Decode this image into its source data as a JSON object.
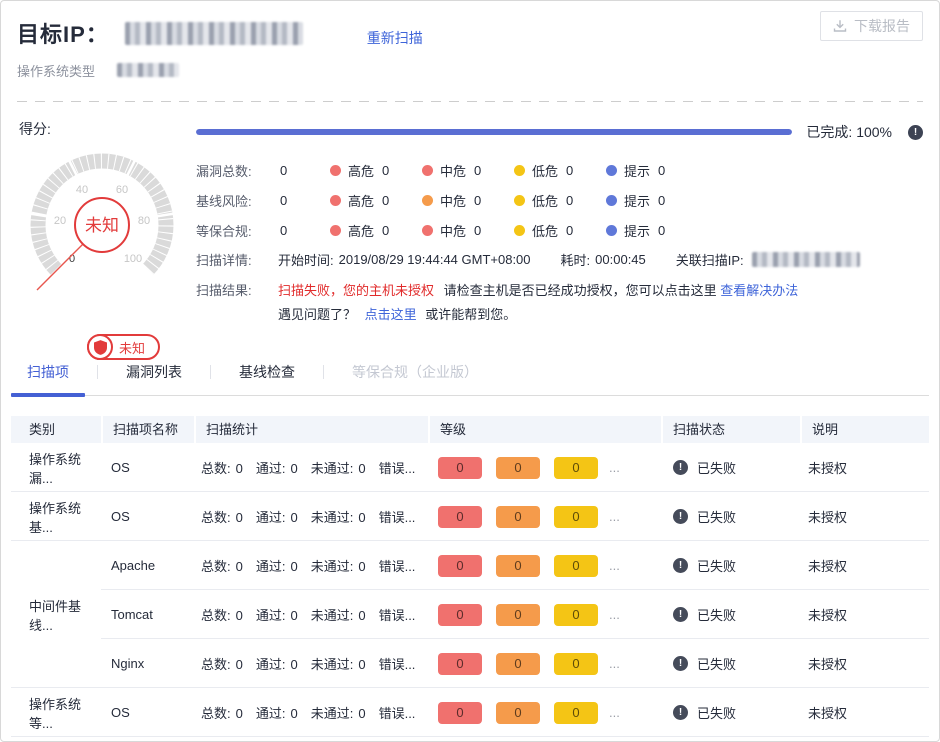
{
  "colors": {
    "accent_blue": "#4460d4",
    "link_blue": "#3e64d9",
    "progress_blue": "#5a6ed3",
    "danger_red": "#e12b2b",
    "gauge_red": "#e23b3b",
    "dot_red": "#f0716e",
    "dot_orange": "#f59b4b",
    "dot_yellow": "#f4c515",
    "dot_blue": "#5f78d9",
    "status_icon_gray": "#454b5a",
    "thead_bg": "#f2f5fa"
  },
  "header": {
    "title_label": "目标IP：",
    "rescan_label": "重新扫描",
    "download_label": "下载报告",
    "os_type_label": "操作系统类型"
  },
  "summary": {
    "score_label": "得分:",
    "gauge": {
      "center_text": "未知",
      "badge_text": "未知",
      "ticks": [
        "0",
        "20",
        "40",
        "60",
        "80",
        "100"
      ]
    },
    "progress": {
      "completed_label": "已完成:",
      "percent_text": "100%",
      "percent": 100
    },
    "stats": [
      {
        "label": "漏洞总数:",
        "total": "0",
        "items": [
          {
            "name": "高危",
            "count": "0",
            "color": "#f0716e"
          },
          {
            "name": "中危",
            "count": "0",
            "color": "#f0716e"
          },
          {
            "name": "低危",
            "count": "0",
            "color": "#f4c515"
          },
          {
            "name": "提示",
            "count": "0",
            "color": "#5f78d9"
          }
        ]
      },
      {
        "label": "基线风险:",
        "total": "0",
        "items": [
          {
            "name": "高危",
            "count": "0",
            "color": "#f0716e"
          },
          {
            "name": "中危",
            "count": "0",
            "color": "#f59b4b"
          },
          {
            "name": "低危",
            "count": "0",
            "color": "#f4c515"
          },
          {
            "name": "提示",
            "count": "0",
            "color": "#5f78d9"
          }
        ]
      },
      {
        "label": "等保合规:",
        "total": "0",
        "items": [
          {
            "name": "高危",
            "count": "0",
            "color": "#f0716e"
          },
          {
            "name": "中危",
            "count": "0",
            "color": "#f0716e"
          },
          {
            "name": "低危",
            "count": "0",
            "color": "#f4c515"
          },
          {
            "name": "提示",
            "count": "0",
            "color": "#5f78d9"
          }
        ]
      }
    ],
    "details": {
      "label": "扫描详情:",
      "start_label": "开始时间:",
      "start_value": "2019/08/29 19:44:44 GMT+08:00",
      "duration_label": "耗时:",
      "duration_value": "00:00:45",
      "related_ip_label": "关联扫描IP:"
    },
    "result": {
      "label": "扫描结果:",
      "fail_text": "扫描失败，您的主机未授权",
      "hint_text": "请检查主机是否已经成功授权，您可以点击这里",
      "solution_link": "查看解决办法",
      "line2_prefix": "遇见问题了？",
      "line2_link": "点击这里",
      "line2_suffix": "或许能帮到您。"
    }
  },
  "tabs": [
    {
      "key": "scan-items",
      "label": "扫描项",
      "state": "active"
    },
    {
      "key": "vulnerability-list",
      "label": "漏洞列表",
      "state": "normal"
    },
    {
      "key": "baseline-check",
      "label": "基线检查",
      "state": "normal"
    },
    {
      "key": "compliance-enterprise",
      "label": "等保合规（企业版）",
      "state": "disabled"
    }
  ],
  "table": {
    "columns": [
      "类别",
      "扫描项名称",
      "扫描统计",
      "等级",
      "扫描状态",
      "说明"
    ],
    "stat_labels": {
      "total": "总数:",
      "pass": "通过:",
      "fail": "未通过:",
      "error": "错误..."
    },
    "ellipsis": "...",
    "badge_colors": [
      "#f0716e",
      "#f59b4b",
      "#f4c515"
    ],
    "rows": [
      {
        "category": "操作系统漏...",
        "name": "OS",
        "total": "0",
        "pass": "0",
        "fail": "0",
        "badges": [
          "0",
          "0",
          "0"
        ],
        "status": "已失败",
        "note": "未授权",
        "divider": "full"
      },
      {
        "category": "操作系统基...",
        "name": "OS",
        "total": "0",
        "pass": "0",
        "fail": "0",
        "badges": [
          "0",
          "0",
          "0"
        ],
        "status": "已失败",
        "note": "未授权",
        "divider": "full"
      },
      {
        "category": "",
        "name": "Apache",
        "total": "0",
        "pass": "0",
        "fail": "0",
        "badges": [
          "0",
          "0",
          "0"
        ],
        "status": "已失败",
        "note": "未授权",
        "divider": "partial"
      },
      {
        "category": "中间件基线...",
        "name": "Tomcat",
        "total": "0",
        "pass": "0",
        "fail": "0",
        "badges": [
          "0",
          "0",
          "0"
        ],
        "status": "已失败",
        "note": "未授权",
        "divider": "partial"
      },
      {
        "category": "",
        "name": "Nginx",
        "total": "0",
        "pass": "0",
        "fail": "0",
        "badges": [
          "0",
          "0",
          "0"
        ],
        "status": "已失败",
        "note": "未授权",
        "divider": "full"
      },
      {
        "category": "操作系统等...",
        "name": "OS",
        "total": "0",
        "pass": "0",
        "fail": "0",
        "badges": [
          "0",
          "0",
          "0"
        ],
        "status": "已失败",
        "note": "未授权",
        "divider": "full"
      }
    ]
  }
}
